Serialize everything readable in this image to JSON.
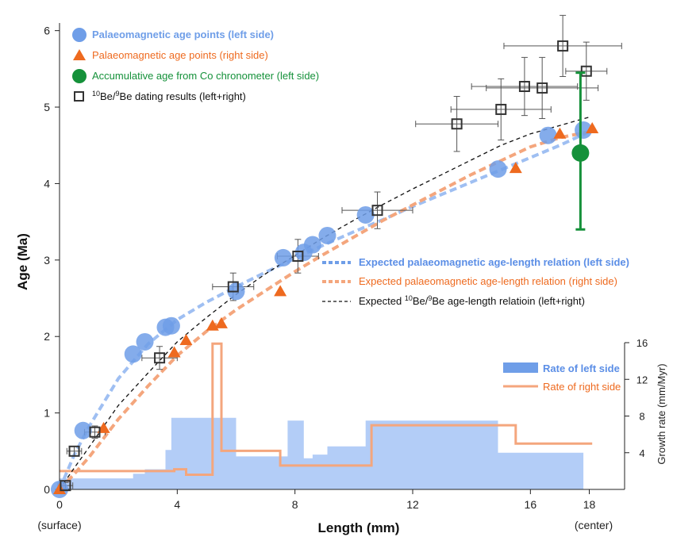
{
  "chart_data": {
    "type": "scatter",
    "xlabel": "Length (mm)",
    "ylabel": "Age (Ma)",
    "y2label": "Growth rate (mm/Myr)",
    "xlim": [
      0,
      19.2
    ],
    "ylim": [
      0,
      6.1
    ],
    "y2lim": [
      0,
      16
    ],
    "x_ticks": [
      0,
      4,
      8,
      12,
      16,
      18
    ],
    "x_tick_labels": [
      "0",
      "4",
      "8",
      "12",
      "16",
      "18"
    ],
    "x_sub_labels": {
      "left": "(surface)",
      "right": "(center)"
    },
    "y_ticks": [
      0,
      1,
      2,
      3,
      4,
      5,
      6
    ],
    "y2_ticks": [
      4,
      8,
      12,
      16
    ],
    "grid": false,
    "legend_top": [
      {
        "label_main": "Palaeomagnetic age points (left side)",
        "color": "#6f9ee8",
        "marker": "circle",
        "bold": true
      },
      {
        "label_main": "Palaeomagnetic age points (right side)",
        "color": "#ee6a1f",
        "marker": "triangle",
        "bold": false
      },
      {
        "label_main": "Accumulative age from Co chronometer (left side)",
        "color": "#15913a",
        "marker": "circle",
        "bold": false
      },
      {
        "sup1": "10",
        "mid": "Be/",
        "sup2": "9",
        "label_main": "Be dating results (left+right)",
        "color": "#111111",
        "marker": "square",
        "bold": false
      }
    ],
    "legend_curves": [
      {
        "label_main": "Expected palaeomagnetic age-length relation (left side)",
        "color": "#6f9ee8",
        "bold": true
      },
      {
        "label_main": "Expected palaeomagnetic age-length relation (right side)",
        "color": "#ee6a1f",
        "bold": false
      },
      {
        "pre": "Expected ",
        "sup1": "10",
        "mid": "Be/",
        "sup2": "9",
        "label_main": "Be age-length relatioin (left+right)",
        "color": "#111111",
        "bold": false
      }
    ],
    "legend_rates": [
      {
        "label": "Rate of left side",
        "color": "#6f9ee8",
        "bold": true
      },
      {
        "label": "Rate of right side",
        "color": "#ee6a1f",
        "bold": false
      }
    ],
    "series": [
      {
        "name": "Palaeomagnetic age points (left side)",
        "points": [
          [
            0,
            0
          ],
          [
            0.8,
            0.77
          ],
          [
            2.5,
            1.77
          ],
          [
            2.9,
            1.93
          ],
          [
            3.6,
            2.12
          ],
          [
            3.8,
            2.14
          ],
          [
            6,
            2.59
          ],
          [
            7.6,
            3.03
          ],
          [
            8.3,
            3.1
          ],
          [
            8.6,
            3.2
          ],
          [
            9.1,
            3.32
          ],
          [
            10.4,
            3.59
          ],
          [
            14.9,
            4.19
          ],
          [
            16.6,
            4.63
          ],
          [
            17.8,
            4.7
          ]
        ]
      },
      {
        "name": "Palaeomagnetic age points (right side)",
        "points": [
          [
            0,
            0
          ],
          [
            1.5,
            0.8
          ],
          [
            3.9,
            1.79
          ],
          [
            4.3,
            1.95
          ],
          [
            5.2,
            2.14
          ],
          [
            5.5,
            2.17
          ],
          [
            7.5,
            2.59
          ],
          [
            15.5,
            4.2
          ],
          [
            17.0,
            4.65
          ],
          [
            18.1,
            4.72
          ]
        ]
      },
      {
        "name": "Accumulative age from Co chronometer (left side)",
        "points": [
          [
            17.7,
            4.4
          ]
        ],
        "error_y": [
          [
            3.4,
            5.45
          ]
        ]
      },
      {
        "name": "Be dating results (left+right)",
        "points": [
          {
            "x": 0.2,
            "y": 0.05,
            "xerr": 0.25,
            "yerr": 0.04
          },
          {
            "x": 0.5,
            "y": 0.5,
            "xerr": 0.25,
            "yerr": 0.06
          },
          {
            "x": 1.2,
            "y": 0.75,
            "xerr": 0.35,
            "yerr": 0.08
          },
          {
            "x": 3.4,
            "y": 1.72,
            "xerr": 0.6,
            "yerr": 0.15
          },
          {
            "x": 5.9,
            "y": 2.65,
            "xerr": 0.7,
            "yerr": 0.18
          },
          {
            "x": 8.1,
            "y": 3.05,
            "xerr": 0.7,
            "yerr": 0.22
          },
          {
            "x": 10.8,
            "y": 3.65,
            "xerr": 1.2,
            "yerr": 0.24
          },
          {
            "x": 13.5,
            "y": 4.78,
            "xerr": 1.4,
            "yerr": 0.36
          },
          {
            "x": 15.0,
            "y": 4.97,
            "xerr": 1.7,
            "yerr": 0.4
          },
          {
            "x": 15.8,
            "y": 5.27,
            "xerr": 1.8,
            "yerr": 0.38
          },
          {
            "x": 16.4,
            "y": 5.25,
            "xerr": 1.9,
            "yerr": 0.4
          },
          {
            "x": 17.1,
            "y": 5.8,
            "xerr": 2.0,
            "yerr": 0.4
          },
          {
            "x": 17.9,
            "y": 5.47,
            "xerr": 0.7,
            "yerr": 0.38
          }
        ]
      }
    ],
    "curves": [
      {
        "name": "Expected palaeomagnetic age-length relation (left side)",
        "points": [
          [
            0,
            0
          ],
          [
            0.5,
            0.45
          ],
          [
            1,
            0.82
          ],
          [
            2,
            1.45
          ],
          [
            3,
            1.9
          ],
          [
            4,
            2.22
          ],
          [
            5,
            2.45
          ],
          [
            6,
            2.65
          ],
          [
            7,
            2.84
          ],
          [
            8,
            3.02
          ],
          [
            9,
            3.2
          ],
          [
            10,
            3.37
          ],
          [
            11,
            3.53
          ],
          [
            12,
            3.7
          ],
          [
            13,
            3.86
          ],
          [
            14,
            4.02
          ],
          [
            15,
            4.18
          ],
          [
            16,
            4.34
          ],
          [
            17,
            4.5
          ],
          [
            18,
            4.68
          ]
        ]
      },
      {
        "name": "Expected palaeomagnetic age-length relation (right side)",
        "points": [
          [
            0,
            0
          ],
          [
            0.5,
            0.2
          ],
          [
            1,
            0.42
          ],
          [
            2,
            0.92
          ],
          [
            3,
            1.35
          ],
          [
            4,
            1.75
          ],
          [
            5,
            2.07
          ],
          [
            6,
            2.35
          ],
          [
            7,
            2.6
          ],
          [
            8,
            2.85
          ],
          [
            9,
            3.08
          ],
          [
            10,
            3.3
          ],
          [
            11,
            3.52
          ],
          [
            12,
            3.72
          ],
          [
            13,
            3.92
          ],
          [
            14,
            4.12
          ],
          [
            15,
            4.3
          ],
          [
            16,
            4.48
          ],
          [
            17,
            4.6
          ],
          [
            18,
            4.68
          ]
        ]
      },
      {
        "name": "Expected Be age-length relatioin (left+right)",
        "points": [
          [
            0,
            0
          ],
          [
            0.5,
            0.28
          ],
          [
            1,
            0.55
          ],
          [
            2,
            1.1
          ],
          [
            3,
            1.52
          ],
          [
            4,
            1.93
          ],
          [
            5,
            2.25
          ],
          [
            6,
            2.55
          ],
          [
            7,
            2.82
          ],
          [
            8,
            3.06
          ],
          [
            9,
            3.3
          ],
          [
            10,
            3.52
          ],
          [
            11,
            3.73
          ],
          [
            12,
            3.93
          ],
          [
            13,
            4.12
          ],
          [
            14,
            4.31
          ],
          [
            15,
            4.5
          ],
          [
            16,
            4.65
          ],
          [
            17,
            4.76
          ],
          [
            18,
            4.87
          ]
        ]
      }
    ],
    "rate_series": [
      {
        "name": "Rate of left side",
        "type": "area-step",
        "steps": [
          [
            0,
            1.2
          ],
          [
            1,
            1.2
          ],
          [
            2.5,
            1.2
          ],
          [
            2.5,
            1.7
          ],
          [
            2.9,
            1.7
          ],
          [
            2.9,
            2.2
          ],
          [
            3.6,
            2.2
          ],
          [
            3.6,
            4.3
          ],
          [
            3.8,
            4.3
          ],
          [
            3.8,
            7.8
          ],
          [
            6,
            7.8
          ],
          [
            6,
            3.6
          ],
          [
            7.6,
            3.6
          ],
          [
            7.6,
            3.6
          ],
          [
            7.75,
            3.6
          ],
          [
            7.75,
            7.5
          ],
          [
            8.3,
            7.5
          ],
          [
            8.3,
            3.4
          ],
          [
            8.6,
            3.4
          ],
          [
            8.6,
            3.8
          ],
          [
            9.1,
            3.8
          ],
          [
            9.1,
            4.7
          ],
          [
            10.4,
            4.7
          ],
          [
            10.4,
            7.5
          ],
          [
            14.9,
            7.5
          ],
          [
            14.9,
            4.0
          ],
          [
            17.8,
            4.0
          ],
          [
            17.8,
            0
          ]
        ]
      },
      {
        "name": "Rate of right side",
        "type": "step",
        "steps": [
          [
            0,
            2.0
          ],
          [
            1.5,
            2.0
          ],
          [
            3.9,
            2.0
          ],
          [
            3.9,
            2.2
          ],
          [
            4.3,
            2.2
          ],
          [
            4.3,
            1.6
          ],
          [
            5.2,
            1.6
          ],
          [
            5.2,
            15.9
          ],
          [
            5.5,
            15.9
          ],
          [
            5.5,
            4.2
          ],
          [
            7.5,
            4.2
          ],
          [
            7.5,
            2.6
          ],
          [
            10.6,
            2.6
          ],
          [
            10.6,
            7.0
          ],
          [
            15.5,
            7.0
          ],
          [
            15.5,
            5.0
          ],
          [
            18.1,
            5.0
          ]
        ]
      }
    ]
  }
}
